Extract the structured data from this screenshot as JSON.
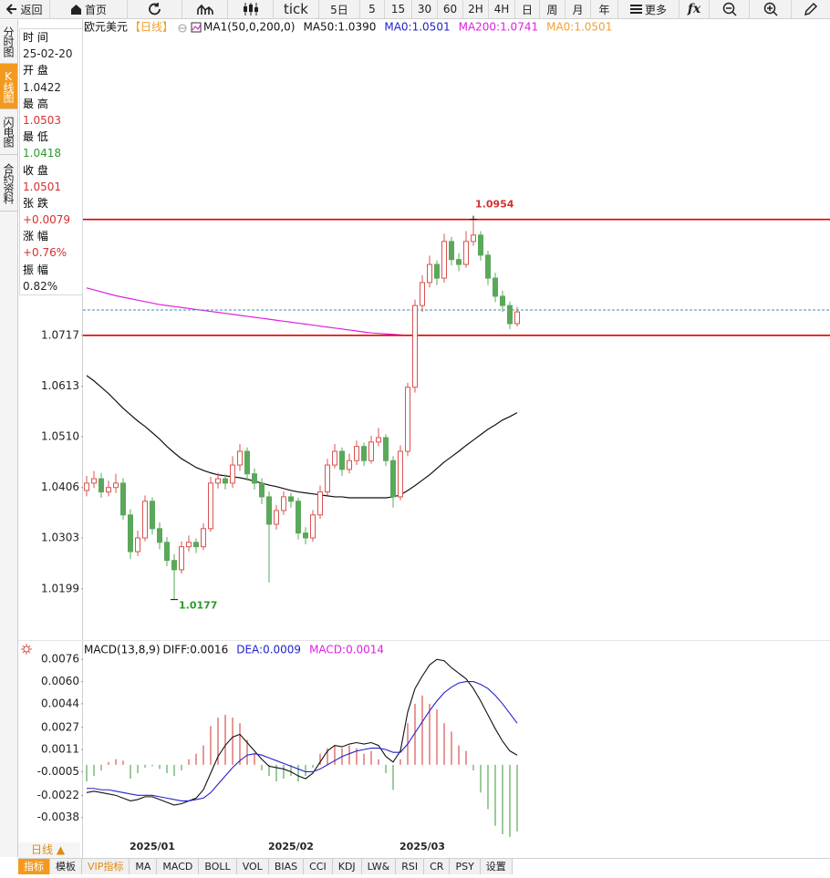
{
  "toolbar": [
    "返回",
    "首页",
    "tick",
    "5日",
    "5",
    "15",
    "30",
    "60",
    "2H",
    "4H",
    "日",
    "周",
    "月",
    "年",
    "更多",
    "fx"
  ],
  "side_tabs": [
    "分时图",
    "K线图",
    "闪电图",
    "合约资料"
  ],
  "info_panel": [
    {
      "label": "时 间",
      "value": "25-02-20",
      "color": "#222222"
    },
    {
      "label": "开 盘",
      "value": "1.0422",
      "color": "#222222"
    },
    {
      "label": "最 高",
      "value": "1.0503",
      "color": "#d43030"
    },
    {
      "label": "最 低",
      "value": "1.0418",
      "color": "#2a9a2a"
    },
    {
      "label": "收 盘",
      "value": "1.0501",
      "color": "#d43030"
    },
    {
      "label": "张 跌",
      "value": "+0.0079",
      "color": "#d43030"
    },
    {
      "label": "涨 幅",
      "value": "+0.76%",
      "color": "#d43030"
    },
    {
      "label": "振 幅",
      "value": "0.82%",
      "color": "#222222"
    }
  ],
  "bottom_bar": {
    "period_button": "日线 ▲",
    "tabs": [
      "指标",
      "模板",
      "VIP指标",
      "MA",
      "MACD",
      "BOLL",
      "VOL",
      "BIAS",
      "CCI",
      "KDJ",
      "LW&",
      "RSI",
      "CR",
      "PSY",
      "设置"
    ]
  },
  "chart_data": [
    {
      "type": "candlestick",
      "title": "欧元美元",
      "subtitle": "【日线】",
      "legend": [
        {
          "text": "MA1(50,0,200,0)",
          "color": "#111111"
        },
        {
          "text": "MA50:1.0390",
          "color": "#111111"
        },
        {
          "text": "MA0:1.0501",
          "color": "#2222cc"
        },
        {
          "text": "MA200:1.0741",
          "color": "#e020e0"
        },
        {
          "text": "MA0:1.0501",
          "color": "#f0a030"
        }
      ],
      "ylim": [
        1.0098,
        1.1328
      ],
      "yticks": [
        1.0199,
        1.0303,
        1.0406,
        {
          "value": 1.051,
          "label": "1.0510"
        },
        1.0613,
        1.0717
      ],
      "up_color": "#d9534f",
      "down_color": "#5aa85a",
      "hlines": [
        1.0954,
        1.0717
      ],
      "hline_color": "#e00000",
      "price_line": 1.0769,
      "price_line_color": "#3a8fb7",
      "open": [
        1.04,
        1.0415,
        1.0424,
        1.0397,
        1.0406,
        1.0415,
        1.035,
        1.0275,
        1.0303,
        1.0378,
        1.0322,
        1.0294,
        1.0257,
        1.0238,
        1.0285,
        1.0294,
        1.0285,
        1.0322,
        1.0415,
        1.0424,
        1.0415,
        1.0452,
        1.048,
        1.0434,
        1.0415,
        1.0387,
        1.0331,
        1.0359,
        1.0387,
        1.0378,
        1.0313,
        1.0303,
        1.035,
        1.0397,
        1.0452,
        1.048,
        1.0443,
        1.0461,
        1.049,
        1.0461,
        1.0499,
        1.0508,
        1.0461,
        1.0387,
        1.048,
        1.0611,
        1.0778,
        1.0825,
        1.0862,
        1.0834,
        1.0909,
        1.0872,
        1.0862,
        1.0909,
        1.0922,
        1.0881,
        1.0834,
        1.0797,
        1.0778,
        1.0741
      ],
      "high": [
        1.043,
        1.044,
        1.0436,
        1.042,
        1.0434,
        1.0425,
        1.0362,
        1.0318,
        1.039,
        1.0386,
        1.0335,
        1.0305,
        1.027,
        1.0296,
        1.0308,
        1.0302,
        1.0333,
        1.0428,
        1.0436,
        1.0433,
        1.047,
        1.0495,
        1.0488,
        1.0445,
        1.0425,
        1.0398,
        1.037,
        1.0398,
        1.0395,
        1.0385,
        1.0325,
        1.036,
        1.041,
        1.0465,
        1.0495,
        1.0488,
        1.0475,
        1.0502,
        1.0498,
        1.0512,
        1.0528,
        1.0515,
        1.047,
        1.0492,
        1.062,
        1.079,
        1.084,
        1.088,
        1.087,
        1.0925,
        1.0918,
        1.0885,
        1.093,
        1.0954,
        1.093,
        1.089,
        1.0845,
        1.0808,
        1.0786,
        1.0775
      ],
      "low": [
        1.0388,
        1.0405,
        1.0385,
        1.0388,
        1.0395,
        1.034,
        1.026,
        1.0266,
        1.0296,
        1.031,
        1.028,
        1.0245,
        1.0177,
        1.023,
        1.0275,
        1.0272,
        1.0278,
        1.0315,
        1.0404,
        1.0402,
        1.0405,
        1.044,
        1.042,
        1.0402,
        1.0372,
        1.0212,
        1.032,
        1.035,
        1.0365,
        1.03,
        1.029,
        1.0295,
        1.0342,
        1.039,
        1.0445,
        1.043,
        1.0435,
        1.0452,
        1.045,
        1.0455,
        1.049,
        1.045,
        1.0365,
        1.038,
        1.047,
        1.06,
        1.0765,
        1.0815,
        1.082,
        1.0825,
        1.086,
        1.0848,
        1.0855,
        1.09,
        1.087,
        1.082,
        1.0785,
        1.0765,
        1.073,
        1.0735
      ],
      "close": [
        1.0415,
        1.0424,
        1.0397,
        1.0406,
        1.0415,
        1.035,
        1.0275,
        1.0303,
        1.0378,
        1.0322,
        1.0294,
        1.0257,
        1.0238,
        1.0285,
        1.0294,
        1.0285,
        1.0322,
        1.0415,
        1.0424,
        1.0415,
        1.0452,
        1.048,
        1.0434,
        1.0415,
        1.0387,
        1.0331,
        1.0359,
        1.0387,
        1.0378,
        1.0313,
        1.0303,
        1.035,
        1.0397,
        1.0452,
        1.048,
        1.0443,
        1.0461,
        1.049,
        1.0461,
        1.0499,
        1.0508,
        1.0461,
        1.0387,
        1.048,
        1.0611,
        1.0778,
        1.0825,
        1.0862,
        1.0834,
        1.0909,
        1.0872,
        1.0862,
        1.0909,
        1.0922,
        1.0881,
        1.0834,
        1.0797,
        1.0778,
        1.0741,
        1.0765
      ],
      "series": [
        {
          "color": "#111111",
          "values": [
            1.0635,
            1.0624,
            1.0611,
            1.0598,
            1.0583,
            1.0568,
            1.0555,
            1.0542,
            1.0531,
            1.0518,
            1.0505,
            1.049,
            1.0477,
            1.0465,
            1.0456,
            1.0447,
            1.0441,
            1.0436,
            1.0432,
            1.043,
            1.0428,
            1.0426,
            1.0423,
            1.0419,
            1.0415,
            1.0411,
            1.0408,
            1.0404,
            1.04,
            1.0397,
            1.0395,
            1.0393,
            1.0391,
            1.0389,
            1.0387,
            1.0387,
            1.0385,
            1.0385,
            1.0385,
            1.0385,
            1.0385,
            1.0385,
            1.0387,
            1.0391,
            1.04,
            1.041,
            1.0421,
            1.0432,
            1.0445,
            1.0458,
            1.0469,
            1.048,
            1.0492,
            1.0503,
            1.0514,
            1.0525,
            1.0534,
            1.0544,
            1.0551,
            1.0559
          ]
        },
        {
          "color": "#e020e0",
          "values": [
            1.0814,
            1.081,
            1.0806,
            1.0802,
            1.0798,
            1.0795,
            1.0792,
            1.0789,
            1.0786,
            1.0783,
            1.078,
            1.0778,
            1.0776,
            1.0774,
            1.0772,
            1.077,
            1.0768,
            1.0766,
            1.0764,
            1.0762,
            1.076,
            1.0758,
            1.0756,
            1.0754,
            1.0752,
            1.075,
            1.0748,
            1.0746,
            1.0744,
            1.0742,
            1.074,
            1.0738,
            1.0736,
            1.0734,
            1.0732,
            1.073,
            1.0728,
            1.0726,
            1.0724,
            1.0722,
            1.0721,
            1.072,
            1.0719,
            1.0718,
            1.0717,
            1.0717,
            1.0717,
            1.0717,
            1.0717,
            1.0717,
            1.0717,
            1.0717,
            null,
            null,
            null,
            null,
            null,
            null,
            null,
            null
          ]
        }
      ]
    },
    {
      "type": "macd",
      "legend": [
        {
          "text": "MACD(13,8,9)",
          "color": "#111111"
        },
        {
          "text": "DIFF:0.0016",
          "color": "#111111"
        },
        {
          "text": "DEA:0.0009",
          "color": "#2222cc"
        },
        {
          "text": "MACD:0.0014",
          "color": "#e020e0"
        }
      ],
      "categories": [
        null,
        null,
        null,
        null,
        null,
        null,
        null,
        null,
        null,
        "2025/01",
        null,
        null,
        null,
        null,
        null,
        null,
        null,
        null,
        null,
        null,
        null,
        null,
        null,
        null,
        null,
        null,
        null,
        null,
        "2025/02",
        null,
        null,
        null,
        null,
        null,
        null,
        null,
        null,
        null,
        null,
        null,
        null,
        null,
        null,
        null,
        null,
        null,
        "2025/03",
        null,
        null,
        null,
        null,
        null,
        null,
        null,
        null,
        null,
        null,
        null,
        null,
        null
      ],
      "ylim": [
        -0.0052,
        0.0086
      ],
      "yticks": [
        0.0076,
        {
          "value": 0.006,
          "label": "0.0060"
        },
        0.0044,
        0.0027,
        0.0011,
        -0.0005,
        -0.0022,
        -0.0038
      ],
      "diff": {
        "color": "#111111",
        "values": [
          -0.002,
          -0.0019,
          -0.002,
          -0.0021,
          -0.0022,
          -0.0024,
          -0.0026,
          -0.0025,
          -0.0023,
          -0.0023,
          -0.0025,
          -0.0027,
          -0.0029,
          -0.0028,
          -0.0026,
          -0.0024,
          -0.0018,
          -0.0006,
          0.0006,
          0.0014,
          0.002,
          0.0022,
          0.0016,
          0.001,
          0.0004,
          -0.0001,
          -0.0002,
          -0.0003,
          -0.0005,
          -0.0008,
          -0.001,
          -0.0006,
          0.0002,
          0.001,
          0.0014,
          0.0013,
          0.0015,
          0.0016,
          0.0015,
          0.0016,
          0.0014,
          0.0006,
          0.0002,
          0.001,
          0.0038,
          0.0055,
          0.0064,
          0.0072,
          0.0076,
          0.0075,
          0.007,
          0.0066,
          0.0062,
          0.0055,
          0.0046,
          0.0036,
          0.0026,
          0.0017,
          0.001,
          0.0007
        ]
      },
      "dea": {
        "color": "#2222cc",
        "values": [
          -0.0017,
          -0.0017,
          -0.0018,
          -0.0018,
          -0.0019,
          -0.002,
          -0.0021,
          -0.0022,
          -0.0022,
          -0.0022,
          -0.0023,
          -0.0024,
          -0.0025,
          -0.0026,
          -0.0026,
          -0.0025,
          -0.0024,
          -0.002,
          -0.0014,
          -0.0008,
          -0.0002,
          0.0003,
          0.0007,
          0.0008,
          0.0007,
          0.0005,
          0.0003,
          0.0001,
          -0.0001,
          -0.0003,
          -0.0005,
          -0.0005,
          -0.0003,
          0.0,
          0.0003,
          0.0006,
          0.0008,
          0.001,
          0.0011,
          0.0012,
          0.0012,
          0.0011,
          0.0009,
          0.0009,
          0.0015,
          0.0023,
          0.0031,
          0.0039,
          0.0046,
          0.0052,
          0.0056,
          0.0059,
          0.006,
          0.006,
          0.0058,
          0.0055,
          0.005,
          0.0044,
          0.0037,
          0.003
        ]
      },
      "histogram": {
        "up_color": "#d9534f",
        "down_color": "#5aa85a",
        "values": [
          -0.0012,
          -0.0008,
          -0.0004,
          0.0002,
          0.0004,
          0.0003,
          -0.001,
          -0.0006,
          -0.0002,
          -0.0001,
          -0.0003,
          -0.0006,
          -0.0008,
          -0.0004,
          0.0004,
          0.0008,
          0.0014,
          0.0028,
          0.0034,
          0.0036,
          0.0034,
          0.003,
          0.0018,
          0.0008,
          -0.0004,
          -0.0008,
          -0.0012,
          -0.001,
          -0.0008,
          -0.0012,
          -0.0008,
          -0.0002,
          0.0008,
          0.0012,
          0.0014,
          0.0012,
          0.0014,
          0.0012,
          0.0008,
          0.001,
          0.0004,
          -0.0006,
          -0.0018,
          0.0004,
          0.003,
          0.0044,
          0.005,
          0.0044,
          0.004,
          0.003,
          0.0024,
          0.0014,
          0.001,
          -0.0004,
          -0.002,
          -0.0032,
          -0.0044,
          -0.005,
          -0.0052,
          -0.0048
        ]
      }
    }
  ]
}
